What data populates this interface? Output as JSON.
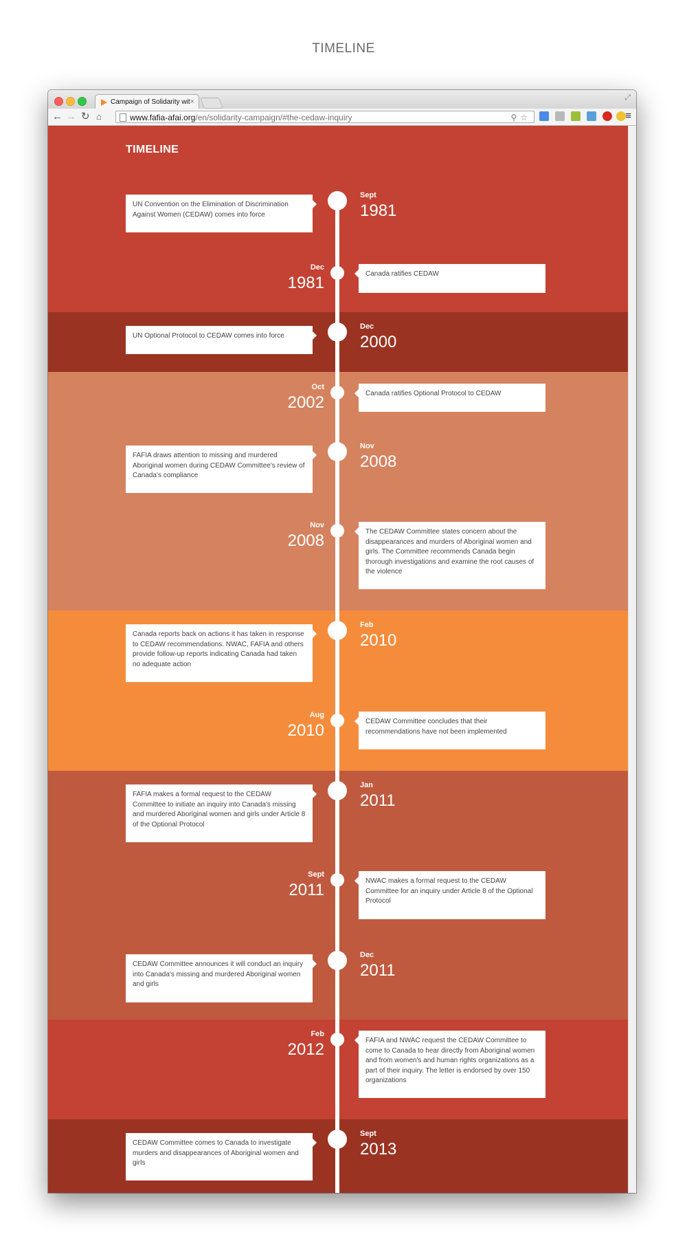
{
  "caption": "TIMELINE",
  "browser": {
    "tab_title": "Campaign of Solidarity wit",
    "tab_close": "×",
    "url_host": "www.fafia-afai.org",
    "url_path": "/en/solidarity-campaign/#the-cedaw-inquiry",
    "nav_back": "←",
    "nav_forward": "→",
    "nav_reload": "↻",
    "nav_home": "⌂",
    "omnibox_tools": "⚲☆",
    "menu": "≡",
    "fullscreen": "⤢"
  },
  "heading": "TIMELINE",
  "colors": {
    "red": "#c44233",
    "dark_red": "#9b3322",
    "salmon": "#d5825f",
    "orange": "#f58c3c",
    "terracotta": "#c05a3f"
  },
  "events": [
    {
      "side": "left",
      "month": "Sept",
      "year": "1981",
      "text": "UN Convention on the Elimination of Discrimination Against Women (CEDAW) comes into force"
    },
    {
      "side": "right",
      "month": "Dec",
      "year": "1981",
      "text": "Canada ratifies CEDAW"
    },
    {
      "side": "left",
      "month": "Dec",
      "year": "2000",
      "text": "UN Optional Protocol to CEDAW comes into force"
    },
    {
      "side": "right",
      "month": "Oct",
      "year": "2002",
      "text": "Canada ratifies Optional Protocol to CEDAW"
    },
    {
      "side": "left",
      "month": "Nov",
      "year": "2008",
      "text": "FAFIA draws attention to missing and murdered Aboriginal women during CEDAW Committee's review of Canada's compliance"
    },
    {
      "side": "right",
      "month": "Nov",
      "year": "2008",
      "text": "The CEDAW Committee states concern about the disappearances and murders of Aboriginal women and girls. The Committee recommends Canada begin thorough investigations and examine the root causes of the violence"
    },
    {
      "side": "left",
      "month": "Feb",
      "year": "2010",
      "text": "Canada reports back on actions it has taken in response to CEDAW recommendations. NWAC, FAFIA and others provide follow-up reports indicating Canada had taken no adequate action"
    },
    {
      "side": "right",
      "month": "Aug",
      "year": "2010",
      "text": "CEDAW Committee concludes that their recommendations have not been implemented"
    },
    {
      "side": "left",
      "month": "Jan",
      "year": "2011",
      "text": "FAFIA makes a formal request to the CEDAW Committee to initiate an inquiry into Canada's missing and murdered Aboriginal women and girls under Article 8 of the Optional Protocol"
    },
    {
      "side": "right",
      "month": "Sept",
      "year": "2011",
      "text": "NWAC makes a formal request to the CEDAW Committee for an inquiry under Article 8 of the Optional Protocol"
    },
    {
      "side": "left",
      "month": "Dec",
      "year": "2011",
      "text": "CEDAW Committee announces it will conduct an inquiry into Canada's missing and murdered Aboriginal women and girls"
    },
    {
      "side": "right",
      "month": "Feb",
      "year": "2012",
      "text": "FAFIA and NWAC request the CEDAW Committee to come to Canada to hear directly from Aboriginal women and from women's and human rights organizations as a part of their inquiry. The letter is endorsed by over 150 organizations"
    },
    {
      "side": "left",
      "month": "Sept",
      "year": "2013",
      "text": "CEDAW Committee comes to Canada to investigate murders and disappearances of Aboriginal women and girls"
    }
  ]
}
